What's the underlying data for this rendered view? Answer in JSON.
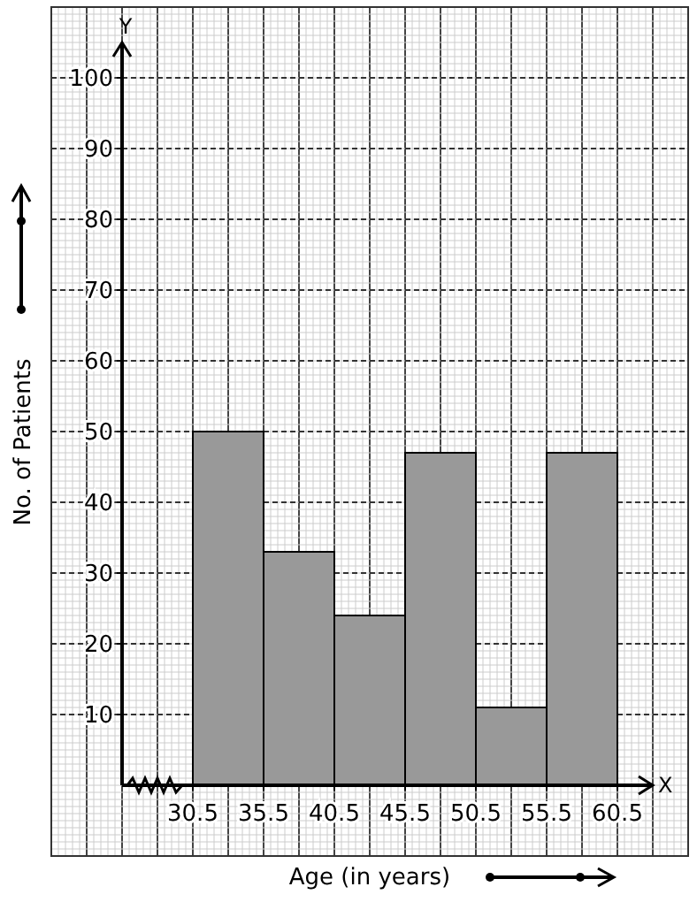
{
  "chart_data": {
    "type": "histogram",
    "xlabel": "Age (in years)",
    "ylabel": "No. of Patients",
    "bins": [
      30.5,
      35.5,
      40.5,
      45.5,
      50.5,
      55.5,
      60.5
    ],
    "values": [
      50,
      33,
      24,
      47,
      11,
      47
    ],
    "color": "#999999",
    "xlim": [
      25.5,
      63
    ],
    "xticks": [
      30.5,
      35.5,
      40.5,
      45.5,
      50.5,
      55.5,
      60.5
    ],
    "ylim": [
      0,
      105
    ],
    "yticks": [
      10,
      20,
      30,
      40,
      50,
      60,
      70,
      80,
      90,
      100
    ],
    "grid": true,
    "annotations": [
      "X",
      "Y"
    ]
  }
}
